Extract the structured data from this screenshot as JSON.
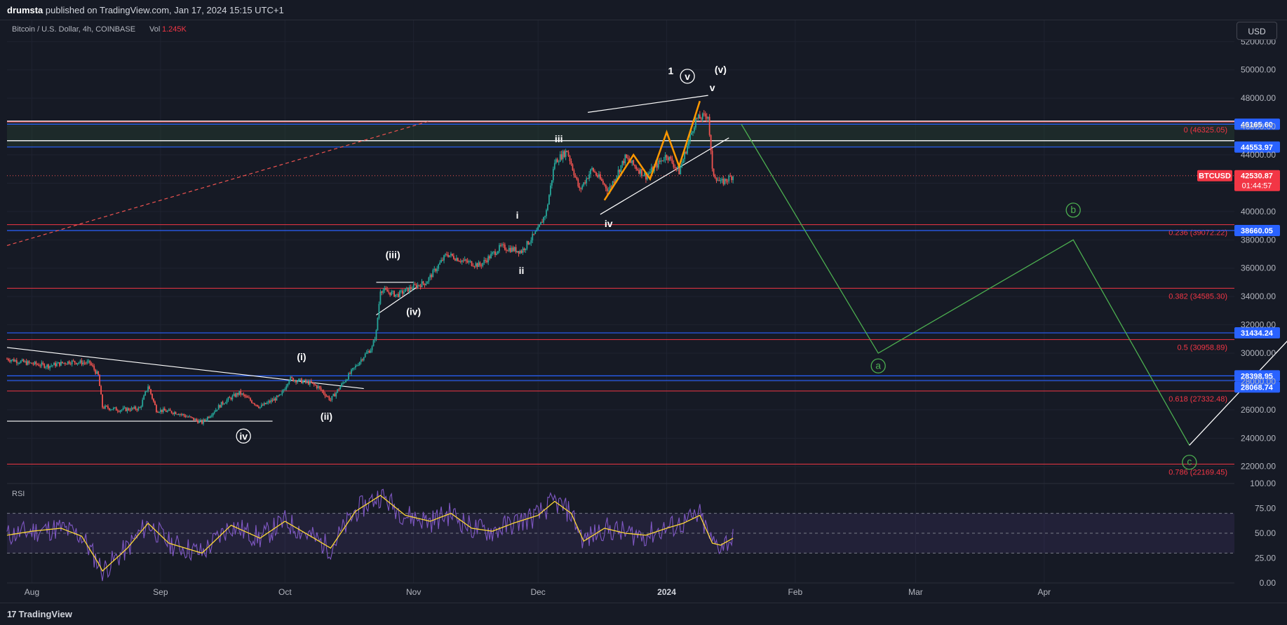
{
  "header": {
    "author": "drumsta",
    "published_text": "published on TradingView.com, Jan 17, 2024 15:15 UTC+1"
  },
  "legend": {
    "symbol": "Bitcoin / U.S. Dollar, 4h, COINBASE",
    "vol_label": "Vol",
    "vol_value": "1.245K"
  },
  "currency_button": "USD",
  "rsi_label": "RSI",
  "footer": {
    "brand": "TradingView",
    "logo_icon": "tradingview-logo-icon"
  },
  "colors": {
    "background": "#161a25",
    "up_candle": "#26a69a",
    "down_candle": "#ef5350",
    "fib_red": "#f23645",
    "blue_line": "#2962ff",
    "wave_green": "#4caf50",
    "rsi_line": "#7e57c2",
    "rsi_ma": "#fdd835",
    "orange_path": "#ff9800"
  },
  "chart_data": {
    "type": "candlestick",
    "title": "Bitcoin / U.S. Dollar, 4h, COINBASE",
    "x_axis": {
      "tick_labels": [
        "Aug",
        "Sep",
        "Oct",
        "Nov",
        "Dec",
        "2024",
        "Feb",
        "Mar",
        "Apr"
      ],
      "tick_dates": [
        "2023-08-01",
        "2023-09-01",
        "2023-10-01",
        "2023-11-01",
        "2023-12-01",
        "2024-01-01",
        "2024-02-01",
        "2024-03-01",
        "2024-04-01"
      ],
      "range": [
        "2023-07-26",
        "2024-05-16"
      ]
    },
    "y_axis": {
      "ticks": [
        22000,
        24000,
        26000,
        28000,
        30000,
        32000,
        34000,
        36000,
        38000,
        40000,
        42000,
        44000,
        46000,
        48000,
        50000,
        52000
      ],
      "tick_labels": [
        "22000.00",
        "24000.00",
        "26000.00",
        "28000.00",
        "30000.00",
        "32000.00",
        "34000.00",
        "36000.00",
        "38000.00",
        "40000.00",
        "42000.00",
        "44000.00",
        "46000.00",
        "48000.00",
        "50000.00",
        "52000.00"
      ],
      "range": [
        20800,
        53500
      ]
    },
    "price_path": [
      [
        "2023-07-26",
        29600
      ],
      [
        "2023-07-31",
        29300
      ],
      [
        "2023-08-05",
        29100
      ],
      [
        "2023-08-10",
        29400
      ],
      [
        "2023-08-15",
        29300
      ],
      [
        "2023-08-17",
        28400
      ],
      [
        "2023-08-18",
        26200
      ],
      [
        "2023-08-22",
        26000
      ],
      [
        "2023-08-27",
        26100
      ],
      [
        "2023-08-29",
        27700
      ],
      [
        "2023-08-31",
        26000
      ],
      [
        "2023-09-05",
        25800
      ],
      [
        "2023-09-11",
        25100
      ],
      [
        "2023-09-16",
        26500
      ],
      [
        "2023-09-20",
        27200
      ],
      [
        "2023-09-25",
        26200
      ],
      [
        "2023-09-30",
        27000
      ],
      [
        "2023-10-02",
        28200
      ],
      [
        "2023-10-07",
        27900
      ],
      [
        "2023-10-09",
        27600
      ],
      [
        "2023-10-12",
        26700
      ],
      [
        "2023-10-16",
        28300
      ],
      [
        "2023-10-20",
        29800
      ],
      [
        "2023-10-22",
        30400
      ],
      [
        "2023-10-23",
        31500
      ],
      [
        "2023-10-24",
        34500
      ],
      [
        "2023-10-28",
        34100
      ],
      [
        "2023-11-01",
        34700
      ],
      [
        "2023-11-04",
        35000
      ],
      [
        "2023-11-09",
        37000
      ],
      [
        "2023-11-13",
        36500
      ],
      [
        "2023-11-17",
        36200
      ],
      [
        "2023-11-22",
        37500
      ],
      [
        "2023-11-27",
        37200
      ],
      [
        "2023-12-01",
        38700
      ],
      [
        "2023-12-03",
        40000
      ],
      [
        "2023-12-05",
        43500
      ],
      [
        "2023-12-08",
        44300
      ],
      [
        "2023-12-11",
        41500
      ],
      [
        "2023-12-14",
        43000
      ],
      [
        "2023-12-18",
        41500
      ],
      [
        "2023-12-22",
        43800
      ],
      [
        "2023-12-27",
        42500
      ],
      [
        "2024-01-01",
        44000
      ],
      [
        "2024-01-04",
        42800
      ],
      [
        "2024-01-08",
        46500
      ],
      [
        "2024-01-11",
        46800
      ],
      [
        "2024-01-12",
        42800
      ],
      [
        "2024-01-14",
        42000
      ],
      [
        "2024-01-17",
        42530
      ]
    ],
    "last_price": {
      "label": "BTCUSD",
      "value": "42530.87",
      "countdown": "01:44:57"
    },
    "horizontal_levels": [
      {
        "value": 46165.6,
        "label": "46165.60",
        "color": "#2962ff"
      },
      {
        "value": 44553.97,
        "label": "44553.97",
        "color": "#2962ff"
      },
      {
        "value": 38660.05,
        "label": "38660.05",
        "color": "#2962ff"
      },
      {
        "value": 31434.24,
        "label": "31434.24",
        "color": "#2962ff"
      },
      {
        "value": 28398.95,
        "label": "28398.95",
        "color": "#2962ff"
      },
      {
        "value": 28068.74,
        "label": "28068.74",
        "color": "#2962ff"
      }
    ],
    "fib_levels": [
      {
        "ratio": "0",
        "value": 46325.05,
        "label": "0 (46325.05)"
      },
      {
        "ratio": "0.236",
        "value": 39072.22,
        "label": "0.236 (39072.22)"
      },
      {
        "ratio": "0.382",
        "value": 34585.3,
        "label": "0.382 (34585.30)"
      },
      {
        "ratio": "0.5",
        "value": 30958.89,
        "label": "0.5 (30958.89)"
      },
      {
        "ratio": "0.618",
        "value": 27332.48,
        "label": "0.618 (27332.48)"
      },
      {
        "ratio": "0.786",
        "value": 22169.45,
        "label": "0.786 (22169.45)"
      }
    ],
    "wave_labels": [
      {
        "text": "1",
        "date": "2024-01-02",
        "price": 49700,
        "circled": false
      },
      {
        "text": "v",
        "date": "2024-01-06",
        "price": 49300,
        "circled": true
      },
      {
        "text": "(v)",
        "date": "2024-01-14",
        "price": 49800,
        "circled": false
      },
      {
        "text": "v",
        "date": "2024-01-12",
        "price": 48500,
        "circled": false
      },
      {
        "text": "iii",
        "date": "2023-12-06",
        "price": 44900,
        "circled": false
      },
      {
        "text": "iv",
        "date": "2023-12-18",
        "price": 38900,
        "circled": false
      },
      {
        "text": "i",
        "date": "2023-11-26",
        "price": 39500,
        "circled": false
      },
      {
        "text": "ii",
        "date": "2023-11-27",
        "price": 35600,
        "circled": false
      },
      {
        "text": "(iii)",
        "date": "2023-10-27",
        "price": 36700,
        "circled": false
      },
      {
        "text": "(iv)",
        "date": "2023-11-01",
        "price": 32700,
        "circled": false
      },
      {
        "text": "(i)",
        "date": "2023-10-05",
        "price": 29500,
        "circled": false
      },
      {
        "text": "(ii)",
        "date": "2023-10-11",
        "price": 25300,
        "circled": false
      },
      {
        "text": "iv",
        "date": "2023-09-21",
        "price": 23900,
        "circled": true
      }
    ],
    "projection_green": [
      [
        "2024-01-19",
        46165
      ],
      [
        "2024-02-21",
        30000
      ],
      [
        "2024-04-08",
        38000
      ],
      [
        "2024-05-06",
        23500
      ]
    ],
    "projection_white": [
      [
        "2024-05-06",
        23500
      ],
      [
        "2024-07-22",
        47500
      ]
    ],
    "abc_labels": [
      {
        "text": "a",
        "date": "2024-02-21",
        "price": 28900
      },
      {
        "text": "b",
        "date": "2024-04-08",
        "price": 39900
      },
      {
        "text": "c",
        "date": "2024-05-06",
        "price": 22100
      }
    ],
    "rsi": {
      "label": "RSI",
      "y_ticks": [
        0,
        25,
        50,
        75,
        100
      ],
      "y_tick_labels": [
        "0.00",
        "25.00",
        "50.00",
        "75.00",
        "100.00"
      ],
      "band": [
        30,
        70
      ],
      "points": [
        [
          "2023-07-26",
          48
        ],
        [
          "2023-08-01",
          52
        ],
        [
          "2023-08-08",
          55
        ],
        [
          "2023-08-13",
          47
        ],
        [
          "2023-08-17",
          20
        ],
        [
          "2023-08-18",
          12
        ],
        [
          "2023-08-24",
          35
        ],
        [
          "2023-08-29",
          60
        ],
        [
          "2023-09-03",
          40
        ],
        [
          "2023-09-11",
          30
        ],
        [
          "2023-09-18",
          58
        ],
        [
          "2023-09-25",
          45
        ],
        [
          "2023-10-01",
          62
        ],
        [
          "2023-10-08",
          45
        ],
        [
          "2023-10-12",
          35
        ],
        [
          "2023-10-18",
          72
        ],
        [
          "2023-10-24",
          88
        ],
        [
          "2023-10-30",
          68
        ],
        [
          "2023-11-05",
          62
        ],
        [
          "2023-11-10",
          70
        ],
        [
          "2023-11-15",
          55
        ],
        [
          "2023-11-20",
          52
        ],
        [
          "2023-11-25",
          60
        ],
        [
          "2023-12-01",
          68
        ],
        [
          "2023-12-05",
          82
        ],
        [
          "2023-12-09",
          70
        ],
        [
          "2023-12-12",
          42
        ],
        [
          "2023-12-17",
          55
        ],
        [
          "2023-12-22",
          50
        ],
        [
          "2023-12-27",
          48
        ],
        [
          "2024-01-01",
          55
        ],
        [
          "2024-01-05",
          60
        ],
        [
          "2024-01-09",
          68
        ],
        [
          "2024-01-12",
          40
        ],
        [
          "2024-01-14",
          38
        ],
        [
          "2024-01-17",
          45
        ]
      ]
    }
  }
}
